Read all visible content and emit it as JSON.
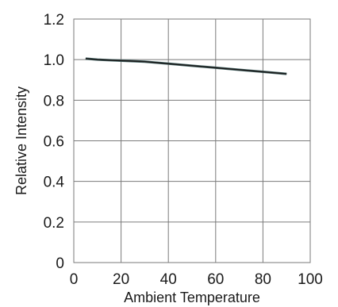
{
  "chart_data": {
    "type": "line",
    "title": "",
    "xlabel": "Ambient Temperature",
    "ylabel": "Relative Intensity",
    "xlim": [
      0,
      100
    ],
    "ylim": [
      0,
      1.2
    ],
    "x_ticks": [
      "0",
      "20",
      "40",
      "60",
      "80",
      "100"
    ],
    "y_ticks": [
      "0",
      "0.2",
      "0.4",
      "0.6",
      "0.8",
      "1.0",
      "1.2"
    ],
    "grid": true,
    "legend": "none",
    "series": [
      {
        "color": "#1a1a1a",
        "x": [
          5,
          10,
          20,
          30,
          40,
          50,
          60,
          70,
          80,
          90
        ],
        "y": [
          1.005,
          1.0,
          0.995,
          0.99,
          0.98,
          0.97,
          0.96,
          0.95,
          0.94,
          0.93
        ]
      }
    ]
  }
}
